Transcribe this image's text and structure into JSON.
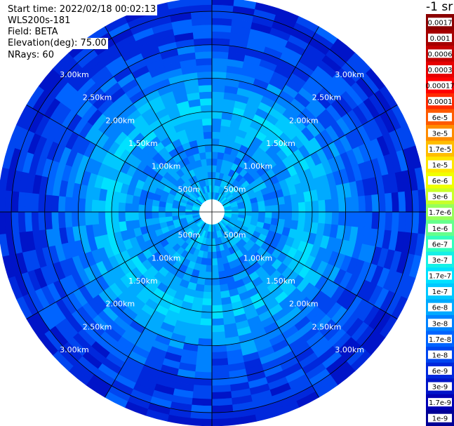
{
  "header": {
    "start_time": "Start time: 2022/02/18 00:02:13",
    "instrument": "WLS200s-181",
    "field": "Field: BETA",
    "elevation": "Elevation(deg): 75.00",
    "nrays": "NRays: 60"
  },
  "chart_data": {
    "type": "heatmap",
    "projection": "polar-ppi",
    "field": "BETA",
    "elevation_deg": 75.0,
    "n_rays": 60,
    "range_rings": [
      {
        "range_m": 500,
        "label": "500m"
      },
      {
        "range_m": 1000,
        "label": "1.00km"
      },
      {
        "range_m": 1500,
        "label": "1.50km"
      },
      {
        "range_m": 2000,
        "label": "2.00km"
      },
      {
        "range_m": 2500,
        "label": "2.50km"
      },
      {
        "range_m": 3000,
        "label": "3.00km"
      }
    ],
    "max_range_m": 3200,
    "radial_profile": [
      {
        "range_m": 0,
        "beta": 1e-07
      },
      {
        "range_m": 500,
        "beta": 6e-08
      },
      {
        "range_m": 1000,
        "beta": 3e-08
      },
      {
        "range_m": 1500,
        "beta": 1e-07
      },
      {
        "range_m": 2000,
        "beta": 3e-08
      },
      {
        "range_m": 2500,
        "beta": 1e-08
      },
      {
        "range_m": 3000,
        "beta": 6e-09
      }
    ],
    "colorbar": {
      "units": "-1 sr",
      "scale": "log",
      "entries": [
        {
          "label": "0.0017",
          "color": "#8b0000"
        },
        {
          "label": "0.001",
          "color": "#a50000"
        },
        {
          "label": "0.0006",
          "color": "#c40000"
        },
        {
          "label": "0.0003",
          "color": "#e60000"
        },
        {
          "label": "0.00017",
          "color": "#ff0000"
        },
        {
          "label": "0.0001",
          "color": "#ff2a00"
        },
        {
          "label": "6e-5",
          "color": "#ff5a00"
        },
        {
          "label": "3e-5",
          "color": "#ff8c00"
        },
        {
          "label": "1.7e-5",
          "color": "#ffbd00"
        },
        {
          "label": "1e-5",
          "color": "#ffe600"
        },
        {
          "label": "6e-6",
          "color": "#f0ff00"
        },
        {
          "label": "3e-6",
          "color": "#c8ff28"
        },
        {
          "label": "1.7e-6",
          "color": "#96ff5a"
        },
        {
          "label": "1e-6",
          "color": "#64ff8c"
        },
        {
          "label": "6e-7",
          "color": "#32ffbe"
        },
        {
          "label": "3e-7",
          "color": "#14f0e6"
        },
        {
          "label": "1.7e-7",
          "color": "#00e1ff"
        },
        {
          "label": "1e-7",
          "color": "#00c8ff"
        },
        {
          "label": "6e-8",
          "color": "#00aaff"
        },
        {
          "label": "3e-8",
          "color": "#0082ff"
        },
        {
          "label": "1.7e-8",
          "color": "#0064ff"
        },
        {
          "label": "1e-8",
          "color": "#0046f0"
        },
        {
          "label": "6e-9",
          "color": "#0028dc"
        },
        {
          "label": "3e-9",
          "color": "#0014c8"
        },
        {
          "label": "1.7e-9",
          "color": "#0000b4"
        },
        {
          "label": "1e-9",
          "color": "#000096"
        }
      ]
    }
  }
}
